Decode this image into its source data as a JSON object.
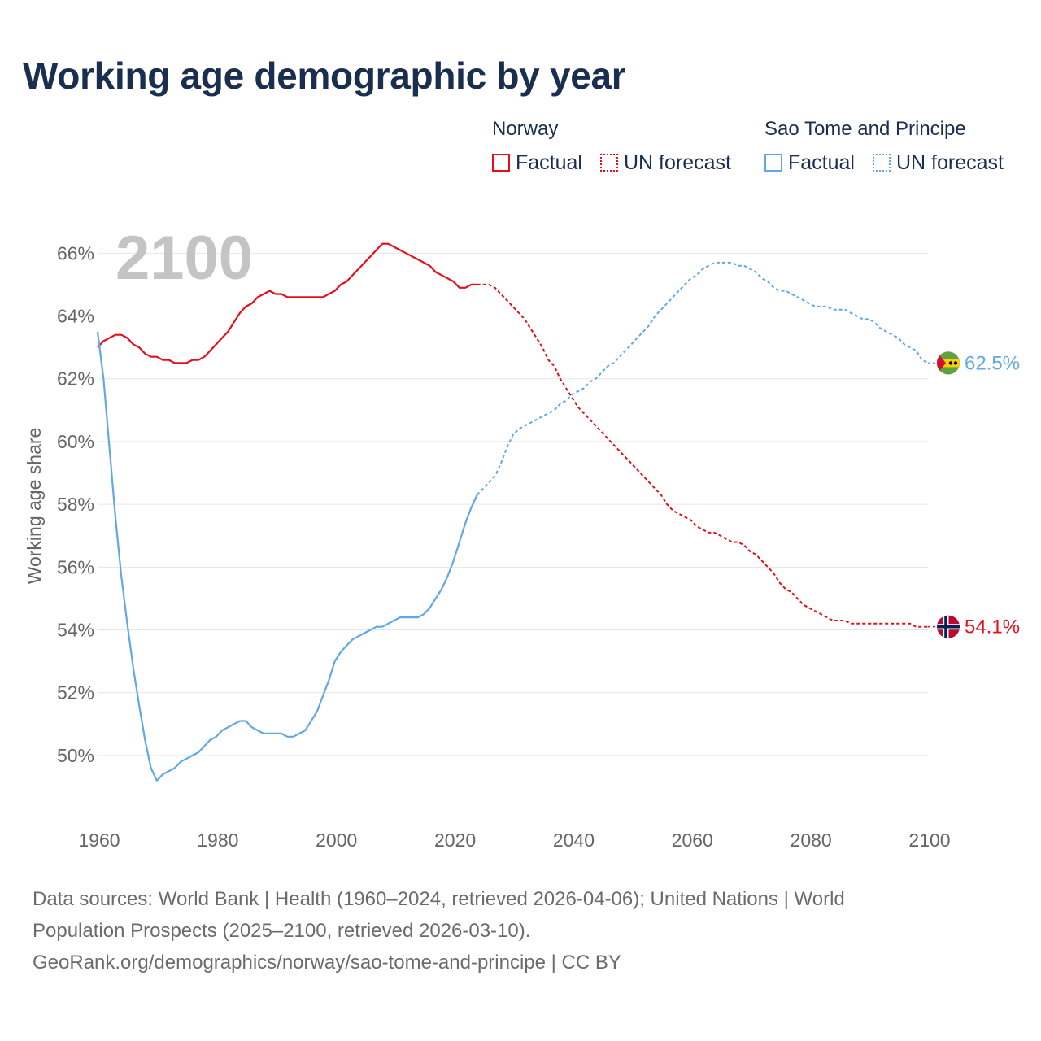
{
  "title": "Working age demographic by year",
  "legend": {
    "groups": [
      {
        "name": "Norway",
        "factual": "Factual",
        "forecast": "UN forecast"
      },
      {
        "name": "Sao Tome and Principe",
        "factual": "Factual",
        "forecast": "UN forecast"
      }
    ]
  },
  "footer": {
    "line1": "Data sources: World Bank | Health (1960–2024, retrieved 2026-04-06); United Nations | World",
    "line2": "Population Prospects (2025–2100, retrieved 2026-03-10).",
    "line3": "GeoRank.org/demographics/norway/sao-tome-and-principe | CC BY"
  },
  "colors": {
    "norway": "#e3101b",
    "stp": "#62a8e5",
    "grid": "#e6e6e6",
    "axis_text": "#666666",
    "watermark": "#c4c4c4"
  },
  "chart_data": {
    "type": "line",
    "title": "Working age demographic by year",
    "ylabel": "Working age share",
    "xlabel": "",
    "watermark_year": "2100",
    "xlim": [
      1960,
      2100
    ],
    "ylim": [
      47.9,
      67.2
    ],
    "x_ticks": [
      1960,
      1980,
      2000,
      2020,
      2040,
      2060,
      2080,
      2100
    ],
    "x_tick_labels": [
      "1960",
      "1980",
      "2000",
      "2020",
      "2040",
      "2060",
      "2080",
      "2100"
    ],
    "y_ticks": [
      50,
      52,
      54,
      56,
      58,
      60,
      62,
      64,
      66
    ],
    "y_tick_labels": [
      "50%",
      "52%",
      "54%",
      "56%",
      "58%",
      "60%",
      "62%",
      "64%",
      "66%"
    ],
    "forecast_start": 2024,
    "series": [
      {
        "name": "Norway",
        "key": "norway",
        "end_label": "54.1%",
        "flag": "norway-flag",
        "points": [
          [
            1960,
            63.0
          ],
          [
            1961,
            63.2
          ],
          [
            1962,
            63.3
          ],
          [
            1963,
            63.4
          ],
          [
            1964,
            63.4
          ],
          [
            1965,
            63.3
          ],
          [
            1966,
            63.1
          ],
          [
            1967,
            63.0
          ],
          [
            1968,
            62.8
          ],
          [
            1969,
            62.7
          ],
          [
            1970,
            62.7
          ],
          [
            1971,
            62.6
          ],
          [
            1972,
            62.6
          ],
          [
            1973,
            62.5
          ],
          [
            1974,
            62.5
          ],
          [
            1975,
            62.5
          ],
          [
            1976,
            62.6
          ],
          [
            1977,
            62.6
          ],
          [
            1978,
            62.7
          ],
          [
            1979,
            62.9
          ],
          [
            1980,
            63.1
          ],
          [
            1981,
            63.3
          ],
          [
            1982,
            63.5
          ],
          [
            1983,
            63.8
          ],
          [
            1984,
            64.1
          ],
          [
            1985,
            64.3
          ],
          [
            1986,
            64.4
          ],
          [
            1987,
            64.6
          ],
          [
            1988,
            64.7
          ],
          [
            1989,
            64.8
          ],
          [
            1990,
            64.7
          ],
          [
            1991,
            64.7
          ],
          [
            1992,
            64.6
          ],
          [
            1993,
            64.6
          ],
          [
            1994,
            64.6
          ],
          [
            1995,
            64.6
          ],
          [
            1996,
            64.6
          ],
          [
            1997,
            64.6
          ],
          [
            1998,
            64.6
          ],
          [
            1999,
            64.7
          ],
          [
            2000,
            64.8
          ],
          [
            2001,
            65.0
          ],
          [
            2002,
            65.1
          ],
          [
            2003,
            65.3
          ],
          [
            2004,
            65.5
          ],
          [
            2005,
            65.7
          ],
          [
            2006,
            65.9
          ],
          [
            2007,
            66.1
          ],
          [
            2008,
            66.3
          ],
          [
            2009,
            66.3
          ],
          [
            2010,
            66.2
          ],
          [
            2011,
            66.1
          ],
          [
            2012,
            66.0
          ],
          [
            2013,
            65.9
          ],
          [
            2014,
            65.8
          ],
          [
            2015,
            65.7
          ],
          [
            2016,
            65.6
          ],
          [
            2017,
            65.4
          ],
          [
            2018,
            65.3
          ],
          [
            2019,
            65.2
          ],
          [
            2020,
            65.1
          ],
          [
            2021,
            64.9
          ],
          [
            2022,
            64.9
          ],
          [
            2023,
            65.0
          ],
          [
            2024,
            65.0
          ],
          [
            2025,
            65.0
          ],
          [
            2026,
            65.0
          ],
          [
            2027,
            64.9
          ],
          [
            2028,
            64.7
          ],
          [
            2029,
            64.5
          ],
          [
            2030,
            64.3
          ],
          [
            2031,
            64.1
          ],
          [
            2032,
            63.9
          ],
          [
            2033,
            63.6
          ],
          [
            2034,
            63.3
          ],
          [
            2035,
            63.0
          ],
          [
            2036,
            62.6
          ],
          [
            2037,
            62.4
          ],
          [
            2038,
            62.0
          ],
          [
            2039,
            61.7
          ],
          [
            2040,
            61.4
          ],
          [
            2041,
            61.1
          ],
          [
            2042,
            60.9
          ],
          [
            2043,
            60.7
          ],
          [
            2044,
            60.5
          ],
          [
            2045,
            60.3
          ],
          [
            2046,
            60.1
          ],
          [
            2047,
            59.9
          ],
          [
            2048,
            59.7
          ],
          [
            2049,
            59.5
          ],
          [
            2050,
            59.3
          ],
          [
            2051,
            59.1
          ],
          [
            2052,
            58.9
          ],
          [
            2053,
            58.7
          ],
          [
            2054,
            58.5
          ],
          [
            2055,
            58.3
          ],
          [
            2056,
            58.0
          ],
          [
            2057,
            57.8
          ],
          [
            2058,
            57.7
          ],
          [
            2059,
            57.6
          ],
          [
            2060,
            57.5
          ],
          [
            2061,
            57.3
          ],
          [
            2062,
            57.2
          ],
          [
            2063,
            57.1
          ],
          [
            2064,
            57.1
          ],
          [
            2065,
            57.0
          ],
          [
            2066,
            56.9
          ],
          [
            2067,
            56.8
          ],
          [
            2068,
            56.8
          ],
          [
            2069,
            56.7
          ],
          [
            2070,
            56.5
          ],
          [
            2071,
            56.4
          ],
          [
            2072,
            56.2
          ],
          [
            2073,
            56.0
          ],
          [
            2074,
            55.8
          ],
          [
            2075,
            55.5
          ],
          [
            2076,
            55.3
          ],
          [
            2077,
            55.2
          ],
          [
            2078,
            55.0
          ],
          [
            2079,
            54.8
          ],
          [
            2080,
            54.7
          ],
          [
            2081,
            54.6
          ],
          [
            2082,
            54.5
          ],
          [
            2083,
            54.4
          ],
          [
            2084,
            54.3
          ],
          [
            2085,
            54.3
          ],
          [
            2086,
            54.3
          ],
          [
            2087,
            54.2
          ],
          [
            2088,
            54.2
          ],
          [
            2089,
            54.2
          ],
          [
            2090,
            54.2
          ],
          [
            2091,
            54.2
          ],
          [
            2092,
            54.2
          ],
          [
            2093,
            54.2
          ],
          [
            2094,
            54.2
          ],
          [
            2095,
            54.2
          ],
          [
            2096,
            54.2
          ],
          [
            2097,
            54.2
          ],
          [
            2098,
            54.1
          ],
          [
            2099,
            54.1
          ],
          [
            2100,
            54.1
          ]
        ]
      },
      {
        "name": "Sao Tome and Principe",
        "key": "stp",
        "end_label": "62.5%",
        "flag": "sao-tome-flag",
        "points": [
          [
            1960,
            63.5
          ],
          [
            1961,
            62.0
          ],
          [
            1962,
            59.8
          ],
          [
            1963,
            57.6
          ],
          [
            1964,
            55.7
          ],
          [
            1965,
            54.2
          ],
          [
            1966,
            52.8
          ],
          [
            1967,
            51.6
          ],
          [
            1968,
            50.5
          ],
          [
            1969,
            49.6
          ],
          [
            1970,
            49.2
          ],
          [
            1971,
            49.4
          ],
          [
            1972,
            49.5
          ],
          [
            1973,
            49.6
          ],
          [
            1974,
            49.8
          ],
          [
            1975,
            49.9
          ],
          [
            1976,
            50.0
          ],
          [
            1977,
            50.1
          ],
          [
            1978,
            50.3
          ],
          [
            1979,
            50.5
          ],
          [
            1980,
            50.6
          ],
          [
            1981,
            50.8
          ],
          [
            1982,
            50.9
          ],
          [
            1983,
            51.0
          ],
          [
            1984,
            51.1
          ],
          [
            1985,
            51.1
          ],
          [
            1986,
            50.9
          ],
          [
            1987,
            50.8
          ],
          [
            1988,
            50.7
          ],
          [
            1989,
            50.7
          ],
          [
            1990,
            50.7
          ],
          [
            1991,
            50.7
          ],
          [
            1992,
            50.6
          ],
          [
            1993,
            50.6
          ],
          [
            1994,
            50.7
          ],
          [
            1995,
            50.8
          ],
          [
            1996,
            51.1
          ],
          [
            1997,
            51.4
          ],
          [
            1998,
            51.9
          ],
          [
            1999,
            52.4
          ],
          [
            2000,
            53.0
          ],
          [
            2001,
            53.3
          ],
          [
            2002,
            53.5
          ],
          [
            2003,
            53.7
          ],
          [
            2004,
            53.8
          ],
          [
            2005,
            53.9
          ],
          [
            2006,
            54.0
          ],
          [
            2007,
            54.1
          ],
          [
            2008,
            54.1
          ],
          [
            2009,
            54.2
          ],
          [
            2010,
            54.3
          ],
          [
            2011,
            54.4
          ],
          [
            2012,
            54.4
          ],
          [
            2013,
            54.4
          ],
          [
            2014,
            54.4
          ],
          [
            2015,
            54.5
          ],
          [
            2016,
            54.7
          ],
          [
            2017,
            55.0
          ],
          [
            2018,
            55.3
          ],
          [
            2019,
            55.7
          ],
          [
            2020,
            56.2
          ],
          [
            2021,
            56.8
          ],
          [
            2022,
            57.4
          ],
          [
            2023,
            57.9
          ],
          [
            2024,
            58.3
          ],
          [
            2025,
            58.5
          ],
          [
            2026,
            58.7
          ],
          [
            2027,
            58.9
          ],
          [
            2028,
            59.3
          ],
          [
            2029,
            59.8
          ],
          [
            2030,
            60.2
          ],
          [
            2031,
            60.4
          ],
          [
            2032,
            60.5
          ],
          [
            2033,
            60.6
          ],
          [
            2034,
            60.7
          ],
          [
            2035,
            60.8
          ],
          [
            2036,
            60.9
          ],
          [
            2037,
            61.0
          ],
          [
            2038,
            61.2
          ],
          [
            2039,
            61.3
          ],
          [
            2040,
            61.5
          ],
          [
            2041,
            61.6
          ],
          [
            2042,
            61.7
          ],
          [
            2043,
            61.9
          ],
          [
            2044,
            62.0
          ],
          [
            2045,
            62.2
          ],
          [
            2046,
            62.4
          ],
          [
            2047,
            62.5
          ],
          [
            2048,
            62.7
          ],
          [
            2049,
            62.9
          ],
          [
            2050,
            63.1
          ],
          [
            2051,
            63.3
          ],
          [
            2052,
            63.5
          ],
          [
            2053,
            63.7
          ],
          [
            2054,
            64.0
          ],
          [
            2055,
            64.2
          ],
          [
            2056,
            64.4
          ],
          [
            2057,
            64.6
          ],
          [
            2058,
            64.8
          ],
          [
            2059,
            65.0
          ],
          [
            2060,
            65.2
          ],
          [
            2061,
            65.3
          ],
          [
            2062,
            65.5
          ],
          [
            2063,
            65.6
          ],
          [
            2064,
            65.7
          ],
          [
            2065,
            65.7
          ],
          [
            2066,
            65.7
          ],
          [
            2067,
            65.7
          ],
          [
            2068,
            65.6
          ],
          [
            2069,
            65.6
          ],
          [
            2070,
            65.5
          ],
          [
            2071,
            65.4
          ],
          [
            2072,
            65.2
          ],
          [
            2073,
            65.1
          ],
          [
            2074,
            64.9
          ],
          [
            2075,
            64.8
          ],
          [
            2076,
            64.8
          ],
          [
            2077,
            64.7
          ],
          [
            2078,
            64.6
          ],
          [
            2079,
            64.5
          ],
          [
            2080,
            64.4
          ],
          [
            2081,
            64.3
          ],
          [
            2082,
            64.3
          ],
          [
            2083,
            64.3
          ],
          [
            2084,
            64.2
          ],
          [
            2085,
            64.2
          ],
          [
            2086,
            64.2
          ],
          [
            2087,
            64.1
          ],
          [
            2088,
            64.0
          ],
          [
            2089,
            63.9
          ],
          [
            2090,
            63.9
          ],
          [
            2091,
            63.8
          ],
          [
            2092,
            63.6
          ],
          [
            2093,
            63.5
          ],
          [
            2094,
            63.4
          ],
          [
            2095,
            63.3
          ],
          [
            2096,
            63.1
          ],
          [
            2097,
            63.0
          ],
          [
            2098,
            62.9
          ],
          [
            2099,
            62.6
          ],
          [
            2100,
            62.5
          ]
        ]
      }
    ]
  }
}
